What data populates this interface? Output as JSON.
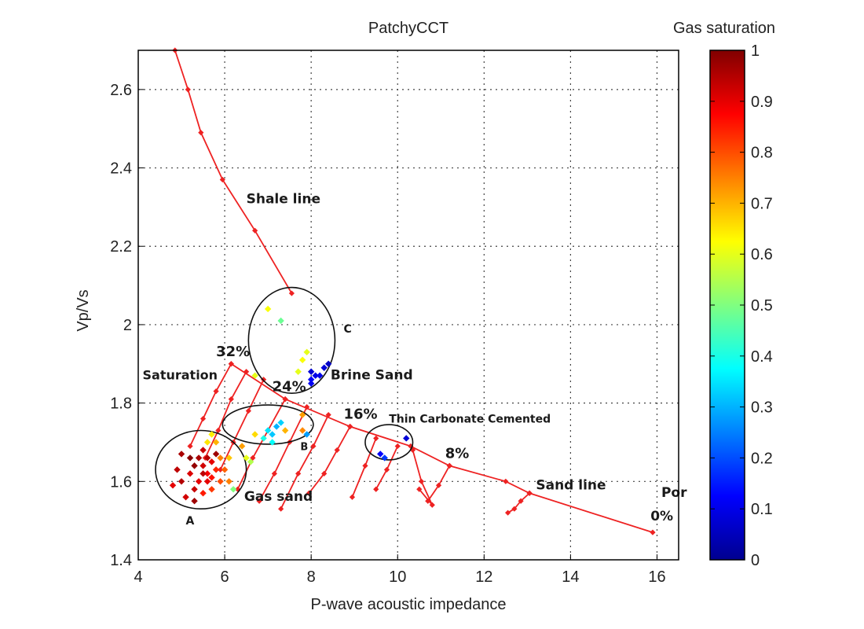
{
  "chart_data": {
    "type": "scatter",
    "title": "PatchyCCT",
    "xlabel": "P-wave acoustic impedance",
    "ylabel": "Vp/Vs",
    "xlim": [
      4,
      16.5
    ],
    "ylim": [
      1.4,
      2.7
    ],
    "xticks": [
      4,
      6,
      8,
      10,
      12,
      14,
      16
    ],
    "yticks": [
      1.4,
      1.6,
      1.8,
      2.0,
      2.2,
      2.4,
      2.6
    ],
    "xtick_labels": [
      "4",
      "6",
      "8",
      "10",
      "12",
      "14",
      "16"
    ],
    "ytick_labels": [
      "1.4",
      "1.6",
      "1.8",
      "2",
      "2.2",
      "2.4",
      "2.6"
    ],
    "grid": true,
    "colorbar": {
      "label": "Gas saturation",
      "range": [
        0,
        1
      ],
      "ticks": [
        0,
        0.1,
        0.2,
        0.3,
        0.4,
        0.5,
        0.6,
        0.7,
        0.8,
        0.9,
        1
      ],
      "tick_labels": [
        "0",
        "0.1",
        "0.2",
        "0.3",
        "0.4",
        "0.5",
        "0.6",
        "0.7",
        "0.8",
        "0.9",
        "1"
      ],
      "colormap": "jet",
      "colors": [
        "#00008f",
        "#0000ff",
        "#0080ff",
        "#00ffff",
        "#80ff80",
        "#ffff00",
        "#ff8000",
        "#ff0000",
        "#800000"
      ]
    },
    "line_color": "#ee2222",
    "shale_line": {
      "x": [
        4.85,
        5.15,
        5.45,
        5.95,
        6.7,
        7.55
      ],
      "y": [
        2.7,
        2.6,
        2.49,
        2.37,
        2.24,
        2.08
      ]
    },
    "sand_line": {
      "x": [
        6.15,
        7.4,
        8.9,
        10.3,
        11.2,
        12.5,
        13.05,
        15.9
      ],
      "y": [
        1.9,
        1.81,
        1.74,
        1.69,
        1.64,
        1.6,
        1.57,
        1.47
      ]
    },
    "saturation_lines": [
      {
        "x": [
          6.15,
          5.8,
          5.5,
          5.2
        ],
        "y": [
          1.9,
          1.83,
          1.76,
          1.69
        ]
      },
      {
        "x": [
          6.5,
          6.15,
          5.85,
          5.55
        ],
        "y": [
          1.88,
          1.81,
          1.73,
          1.66
        ]
      },
      {
        "x": [
          6.9,
          6.55,
          6.2,
          5.9
        ],
        "y": [
          1.86,
          1.78,
          1.7,
          1.63
        ]
      },
      {
        "x": [
          7.4,
          7.0,
          6.65,
          6.3
        ],
        "y": [
          1.81,
          1.73,
          1.66,
          1.58
        ]
      },
      {
        "x": [
          7.9,
          7.5,
          7.15,
          6.8
        ],
        "y": [
          1.79,
          1.7,
          1.62,
          1.55
        ]
      },
      {
        "x": [
          8.4,
          8.05,
          7.7,
          7.3
        ],
        "y": [
          1.77,
          1.69,
          1.62,
          1.53
        ]
      },
      {
        "x": [
          8.9,
          8.6,
          8.3,
          7.95
        ],
        "y": [
          1.74,
          1.68,
          1.62,
          1.57
        ]
      },
      {
        "x": [
          9.5,
          9.25,
          8.95
        ],
        "y": [
          1.71,
          1.64,
          1.56
        ]
      },
      {
        "x": [
          10.0,
          9.75,
          9.5
        ],
        "y": [
          1.69,
          1.63,
          1.58
        ]
      },
      {
        "x": [
          10.35,
          10.55,
          10.8,
          10.5
        ],
        "y": [
          1.68,
          1.6,
          1.54,
          1.58
        ]
      },
      {
        "x": [
          11.2,
          10.95,
          10.7
        ],
        "y": [
          1.64,
          1.59,
          1.55
        ]
      },
      {
        "x": [
          13.05,
          12.85,
          12.7,
          12.55
        ],
        "y": [
          1.57,
          1.55,
          1.53,
          1.52
        ]
      }
    ],
    "points": [
      {
        "x": 5.6,
        "y": 1.66,
        "s": 0.95
      },
      {
        "x": 5.7,
        "y": 1.65,
        "s": 0.9
      },
      {
        "x": 5.5,
        "y": 1.64,
        "s": 0.92
      },
      {
        "x": 5.8,
        "y": 1.67,
        "s": 0.97
      },
      {
        "x": 5.6,
        "y": 1.62,
        "s": 0.88
      },
      {
        "x": 5.4,
        "y": 1.6,
        "s": 0.9
      },
      {
        "x": 5.3,
        "y": 1.58,
        "s": 0.93
      },
      {
        "x": 5.2,
        "y": 1.62,
        "s": 0.91
      },
      {
        "x": 5.0,
        "y": 1.6,
        "s": 0.95
      },
      {
        "x": 4.9,
        "y": 1.63,
        "s": 0.94
      },
      {
        "x": 5.0,
        "y": 1.67,
        "s": 0.96
      },
      {
        "x": 4.8,
        "y": 1.59,
        "s": 0.9
      },
      {
        "x": 5.1,
        "y": 1.56,
        "s": 0.92
      },
      {
        "x": 5.3,
        "y": 1.55,
        "s": 0.97
      },
      {
        "x": 5.5,
        "y": 1.57,
        "s": 0.85
      },
      {
        "x": 5.7,
        "y": 1.58,
        "s": 0.82
      },
      {
        "x": 5.9,
        "y": 1.6,
        "s": 0.8
      },
      {
        "x": 6.0,
        "y": 1.63,
        "s": 0.78
      },
      {
        "x": 5.9,
        "y": 1.66,
        "s": 0.75
      },
      {
        "x": 5.8,
        "y": 1.7,
        "s": 0.7
      },
      {
        "x": 5.6,
        "y": 1.7,
        "s": 0.65
      },
      {
        "x": 5.5,
        "y": 1.68,
        "s": 0.93
      },
      {
        "x": 5.4,
        "y": 1.66,
        "s": 0.96
      },
      {
        "x": 5.3,
        "y": 1.64,
        "s": 0.98
      },
      {
        "x": 5.7,
        "y": 1.61,
        "s": 0.86
      },
      {
        "x": 5.8,
        "y": 1.63,
        "s": 0.84
      },
      {
        "x": 6.1,
        "y": 1.6,
        "s": 0.75
      },
      {
        "x": 6.2,
        "y": 1.58,
        "s": 0.5
      },
      {
        "x": 6.1,
        "y": 1.66,
        "s": 0.68
      },
      {
        "x": 5.6,
        "y": 1.6,
        "s": 0.9
      },
      {
        "x": 5.5,
        "y": 1.62,
        "s": 0.94
      },
      {
        "x": 5.2,
        "y": 1.66,
        "s": 0.99
      },
      {
        "x": 6.4,
        "y": 1.69,
        "s": 0.72
      },
      {
        "x": 6.5,
        "y": 1.66,
        "s": 0.6
      },
      {
        "x": 6.6,
        "y": 1.65,
        "s": 0.55
      },
      {
        "x": 6.7,
        "y": 1.72,
        "s": 0.66
      },
      {
        "x": 6.9,
        "y": 1.71,
        "s": 0.4
      },
      {
        "x": 7.0,
        "y": 1.73,
        "s": 0.35
      },
      {
        "x": 7.1,
        "y": 1.72,
        "s": 0.32
      },
      {
        "x": 7.2,
        "y": 1.74,
        "s": 0.3
      },
      {
        "x": 7.3,
        "y": 1.75,
        "s": 0.33
      },
      {
        "x": 7.4,
        "y": 1.73,
        "s": 0.7
      },
      {
        "x": 7.8,
        "y": 1.77,
        "s": 0.72
      },
      {
        "x": 7.8,
        "y": 1.73,
        "s": 0.74
      },
      {
        "x": 7.1,
        "y": 1.7,
        "s": 0.38
      },
      {
        "x": 7.9,
        "y": 1.72,
        "s": 0.28
      },
      {
        "x": 7.0,
        "y": 2.04,
        "s": 0.62
      },
      {
        "x": 7.3,
        "y": 2.01,
        "s": 0.48
      },
      {
        "x": 7.9,
        "y": 1.93,
        "s": 0.6
      },
      {
        "x": 7.8,
        "y": 1.91,
        "s": 0.62
      },
      {
        "x": 8.0,
        "y": 1.88,
        "s": 0.08
      },
      {
        "x": 8.1,
        "y": 1.87,
        "s": 0.1
      },
      {
        "x": 8.0,
        "y": 1.86,
        "s": 0.12
      },
      {
        "x": 8.2,
        "y": 1.87,
        "s": 0.1
      },
      {
        "x": 8.4,
        "y": 1.9,
        "s": 0.06
      },
      {
        "x": 8.3,
        "y": 1.89,
        "s": 0.08
      },
      {
        "x": 7.7,
        "y": 1.88,
        "s": 0.6
      },
      {
        "x": 8.0,
        "y": 1.85,
        "s": 0.11
      },
      {
        "x": 6.7,
        "y": 1.87,
        "s": 0.6
      },
      {
        "x": 9.6,
        "y": 1.67,
        "s": 0.12
      },
      {
        "x": 9.7,
        "y": 1.66,
        "s": 0.18
      },
      {
        "x": 10.2,
        "y": 1.71,
        "s": 0.08
      },
      {
        "x": 5.7,
        "y": 1.72,
        "s": 0.64
      }
    ],
    "annotations": [
      {
        "text": "Shale line",
        "x": 6.5,
        "y": 2.31,
        "size": 17
      },
      {
        "text": "Saturation",
        "x": 4.1,
        "y": 1.86,
        "size": 16
      },
      {
        "text": "32%",
        "x": 5.8,
        "y": 1.92,
        "size": 18
      },
      {
        "text": "24%",
        "x": 7.1,
        "y": 1.83,
        "size": 18
      },
      {
        "text": "16%",
        "x": 8.75,
        "y": 1.76,
        "size": 18
      },
      {
        "text": "8%",
        "x": 11.1,
        "y": 1.66,
        "size": 18
      },
      {
        "text": "C",
        "x": 8.75,
        "y": 1.98,
        "size": 14
      },
      {
        "text": "Brine Sand",
        "x": 8.45,
        "y": 1.86,
        "size": 17
      },
      {
        "text": "Thin Carbonate Cemented",
        "x": 9.8,
        "y": 1.75,
        "size": 14
      },
      {
        "text": "B",
        "x": 7.75,
        "y": 1.68,
        "size": 13
      },
      {
        "text": "Gas sand",
        "x": 6.45,
        "y": 1.55,
        "size": 17
      },
      {
        "text": "A",
        "x": 5.1,
        "y": 1.49,
        "size": 14
      },
      {
        "text": "Sand line",
        "x": 13.2,
        "y": 1.58,
        "size": 17
      },
      {
        "text": "Por",
        "x": 16.1,
        "y": 1.56,
        "size": 17
      },
      {
        "text": "0%",
        "x": 15.85,
        "y": 1.5,
        "size": 17
      }
    ],
    "ellipses": [
      {
        "cx": 7.55,
        "cy": 1.96,
        "rx": 1.0,
        "ry": 0.135,
        "name": "C"
      },
      {
        "cx": 7.0,
        "cy": 1.745,
        "rx": 1.05,
        "ry": 0.05,
        "name": "B"
      },
      {
        "cx": 5.45,
        "cy": 1.63,
        "rx": 1.05,
        "ry": 0.1,
        "name": "A"
      },
      {
        "cx": 9.8,
        "cy": 1.7,
        "rx": 0.55,
        "ry": 0.045,
        "name": "Thin Carbonate Cemented"
      }
    ]
  }
}
